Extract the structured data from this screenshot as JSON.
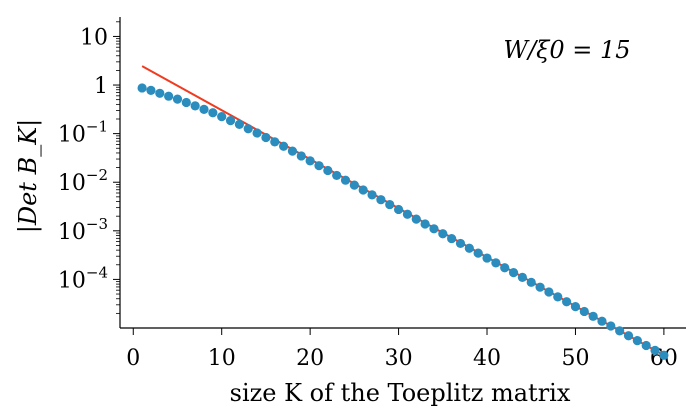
{
  "chart_data": {
    "type": "scatter",
    "title": "",
    "xlabel": "size K of the Toeplitz matrix",
    "ylabel": "|Det B_K|",
    "annotation": "W/ξ0 = 15",
    "xlim": [
      -1.5,
      62.5
    ],
    "ylim_log10": [
      -5.0,
      1.4
    ],
    "yscale": "log",
    "grid": false,
    "legend": "none",
    "x_ticks": [
      {
        "value": 0,
        "label": "0"
      },
      {
        "value": 10,
        "label": "10"
      },
      {
        "value": 20,
        "label": "20"
      },
      {
        "value": 30,
        "label": "30"
      },
      {
        "value": 40,
        "label": "40"
      },
      {
        "value": 50,
        "label": "50"
      },
      {
        "value": 60,
        "label": "60"
      }
    ],
    "y_ticks": [
      {
        "log10": 1,
        "base": "10",
        "exp": ""
      },
      {
        "log10": 0,
        "base": "1",
        "exp": ""
      },
      {
        "log10": -1,
        "base": "10",
        "exp": "−1"
      },
      {
        "log10": -2,
        "base": "10",
        "exp": "−2"
      },
      {
        "log10": -3,
        "base": "10",
        "exp": "−3"
      },
      {
        "log10": -4,
        "base": "10",
        "exp": "−4"
      }
    ],
    "series": [
      {
        "kind": "points",
        "color": "#2b8cbe",
        "x": [
          1,
          2,
          3,
          4,
          5,
          6,
          7,
          8,
          9,
          10,
          11,
          12,
          13,
          14,
          15,
          16,
          17,
          18,
          19,
          20,
          21,
          22,
          23,
          24,
          25,
          26,
          27,
          28,
          29,
          30,
          31,
          32,
          33,
          34,
          35,
          36,
          37,
          38,
          39,
          40,
          41,
          42,
          43,
          44,
          45,
          46,
          47,
          48,
          49,
          50,
          51,
          52,
          53,
          54,
          55,
          56,
          57,
          58,
          59,
          60
        ],
        "y": [
          0.871,
          0.776,
          0.676,
          0.589,
          0.513,
          0.437,
          0.372,
          0.316,
          0.269,
          0.224,
          0.185,
          0.155,
          0.126,
          0.103,
          0.0832,
          0.0676,
          0.055,
          0.0437,
          0.0347,
          0.0275,
          0.0219,
          0.0174,
          0.0138,
          0.011,
          0.00871,
          0.00692,
          0.0055,
          0.00437,
          0.00347,
          0.00275,
          0.00219,
          0.00174,
          0.00138,
          0.0011,
          0.000871,
          0.000692,
          0.00055,
          0.000437,
          0.000347,
          0.000275,
          0.000219,
          0.000174,
          0.000138,
          0.00011,
          8.71e-05,
          6.92e-05,
          5.5e-05,
          4.37e-05,
          3.47e-05,
          2.75e-05,
          2.19e-05,
          1.74e-05,
          1.38e-05,
          1.1e-05,
          8.71e-06,
          6.92e-06,
          5.5e-06,
          4.37e-06,
          3.47e-06,
          2.75e-06
        ]
      },
      {
        "kind": "line",
        "color": "#f03b20",
        "x": [
          1,
          60
        ],
        "y": [
          2.45,
          2.75e-06
        ]
      }
    ]
  }
}
